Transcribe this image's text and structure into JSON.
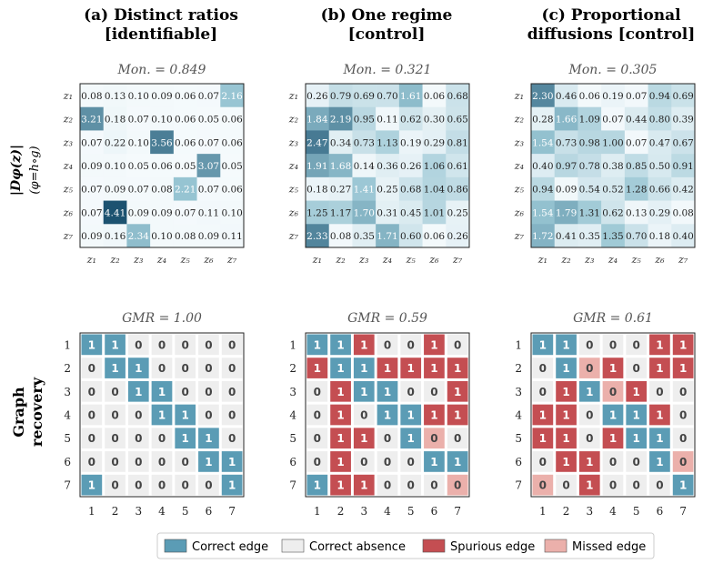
{
  "panels": [
    {
      "title_line1": "(a) Distinct ratios",
      "title_line2": "[identifiable]"
    },
    {
      "title_line1": "(b) One regime",
      "title_line2": "[control]"
    },
    {
      "title_line1": "(c) Proportional",
      "title_line2": "diffusions [control]"
    }
  ],
  "row_labels": {
    "top_line1": "|Dφ(z)|",
    "top_line2": "(φ=h∘g)",
    "bottom_line1": "Graph",
    "bottom_line2": "recovery"
  },
  "legend": [
    {
      "key": "correct_edge",
      "label": "Correct edge",
      "color": "#5b9cb5"
    },
    {
      "key": "correct_absence",
      "label": "Correct absence",
      "color": "#eeeeee"
    },
    {
      "key": "spurious_edge",
      "label": "Spurious edge",
      "color": "#c44e52"
    },
    {
      "key": "missed_edge",
      "label": "Missed edge",
      "color": "#ebb0ab"
    }
  ],
  "chart_data": [
    {
      "type": "heatmap",
      "panel": "(a) Distinct ratios [identifiable]",
      "subtitle": "Mon. = 0.849",
      "row_labels": [
        "z1",
        "z2",
        "z3",
        "z4",
        "z5",
        "z6",
        "z7"
      ],
      "col_labels": [
        "z1",
        "z2",
        "z3",
        "z4",
        "z5",
        "z6",
        "z7"
      ],
      "values": [
        [
          0.08,
          0.13,
          0.1,
          0.09,
          0.06,
          0.07,
          2.16
        ],
        [
          3.21,
          0.18,
          0.07,
          0.1,
          0.06,
          0.05,
          0.06
        ],
        [
          0.07,
          0.22,
          0.1,
          3.56,
          0.06,
          0.07,
          0.06
        ],
        [
          0.09,
          0.1,
          0.05,
          0.06,
          0.05,
          3.07,
          0.05
        ],
        [
          0.07,
          0.09,
          0.07,
          0.08,
          2.21,
          0.07,
          0.06
        ],
        [
          0.07,
          4.41,
          0.09,
          0.09,
          0.07,
          0.11,
          0.1
        ],
        [
          0.09,
          0.16,
          2.34,
          0.1,
          0.08,
          0.09,
          0.11
        ]
      ]
    },
    {
      "type": "heatmap",
      "panel": "(b) One regime [control]",
      "subtitle": "Mon. = 0.321",
      "row_labels": [
        "z1",
        "z2",
        "z3",
        "z4",
        "z5",
        "z6",
        "z7"
      ],
      "col_labels": [
        "z1",
        "z2",
        "z3",
        "z4",
        "z5",
        "z6",
        "z7"
      ],
      "values": [
        [
          0.26,
          0.79,
          0.69,
          0.7,
          1.61,
          0.06,
          0.68
        ],
        [
          1.84,
          2.19,
          0.95,
          0.11,
          0.62,
          0.3,
          0.65
        ],
        [
          2.47,
          0.34,
          0.73,
          1.13,
          0.19,
          0.29,
          0.81
        ],
        [
          1.91,
          1.68,
          0.14,
          0.36,
          0.26,
          1.06,
          0.61
        ],
        [
          0.18,
          0.27,
          1.41,
          0.25,
          0.68,
          1.04,
          0.86
        ],
        [
          1.25,
          1.17,
          1.7,
          0.31,
          0.45,
          1.01,
          0.25
        ],
        [
          2.33,
          0.08,
          0.35,
          1.71,
          0.6,
          0.06,
          0.26
        ]
      ]
    },
    {
      "type": "heatmap",
      "panel": "(c) Proportional diffusions [control]",
      "subtitle": "Mon. = 0.305",
      "row_labels": [
        "z1",
        "z2",
        "z3",
        "z4",
        "z5",
        "z6",
        "z7"
      ],
      "col_labels": [
        "z1",
        "z2",
        "z3",
        "z4",
        "z5",
        "z6",
        "z7"
      ],
      "values": [
        [
          2.3,
          0.46,
          0.06,
          0.19,
          0.07,
          0.94,
          0.69
        ],
        [
          0.28,
          1.66,
          1.09,
          0.07,
          0.44,
          0.8,
          0.39
        ],
        [
          1.54,
          0.73,
          0.98,
          1.0,
          0.07,
          0.47,
          0.67
        ],
        [
          0.4,
          0.97,
          0.78,
          0.38,
          0.85,
          0.5,
          0.91
        ],
        [
          0.94,
          0.09,
          0.54,
          0.52,
          1.28,
          0.66,
          0.42
        ],
        [
          1.54,
          1.79,
          1.31,
          0.62,
          0.13,
          0.29,
          0.08
        ],
        [
          1.72,
          0.41,
          0.35,
          1.35,
          0.7,
          0.18,
          0.4
        ]
      ]
    },
    {
      "type": "table",
      "panel": "(a) Distinct ratios [identifiable]",
      "subtitle": "GMR = 1.00",
      "row_labels": [
        "1",
        "2",
        "3",
        "4",
        "5",
        "6",
        "7"
      ],
      "col_labels": [
        "1",
        "2",
        "3",
        "4",
        "5",
        "6",
        "7"
      ],
      "values": [
        [
          1,
          1,
          0,
          0,
          0,
          0,
          0
        ],
        [
          0,
          1,
          1,
          0,
          0,
          0,
          0
        ],
        [
          0,
          0,
          1,
          1,
          0,
          0,
          0
        ],
        [
          0,
          0,
          0,
          1,
          1,
          0,
          0
        ],
        [
          0,
          0,
          0,
          0,
          1,
          1,
          0
        ],
        [
          0,
          0,
          0,
          0,
          0,
          1,
          1
        ],
        [
          1,
          0,
          0,
          0,
          0,
          0,
          1
        ]
      ],
      "status": [
        [
          "C",
          "C",
          "A",
          "A",
          "A",
          "A",
          "A"
        ],
        [
          "A",
          "C",
          "C",
          "A",
          "A",
          "A",
          "A"
        ],
        [
          "A",
          "A",
          "C",
          "C",
          "A",
          "A",
          "A"
        ],
        [
          "A",
          "A",
          "A",
          "C",
          "C",
          "A",
          "A"
        ],
        [
          "A",
          "A",
          "A",
          "A",
          "C",
          "C",
          "A"
        ],
        [
          "A",
          "A",
          "A",
          "A",
          "A",
          "C",
          "C"
        ],
        [
          "C",
          "A",
          "A",
          "A",
          "A",
          "A",
          "C"
        ]
      ]
    },
    {
      "type": "table",
      "panel": "(b) One regime [control]",
      "subtitle": "GMR = 0.59",
      "row_labels": [
        "1",
        "2",
        "3",
        "4",
        "5",
        "6",
        "7"
      ],
      "col_labels": [
        "1",
        "2",
        "3",
        "4",
        "5",
        "6",
        "7"
      ],
      "values": [
        [
          1,
          1,
          1,
          0,
          0,
          1,
          0
        ],
        [
          1,
          1,
          1,
          1,
          1,
          1,
          1
        ],
        [
          0,
          1,
          1,
          1,
          0,
          0,
          1
        ],
        [
          0,
          1,
          0,
          1,
          1,
          1,
          1
        ],
        [
          0,
          1,
          1,
          0,
          1,
          0,
          0
        ],
        [
          0,
          1,
          0,
          0,
          0,
          1,
          1
        ],
        [
          1,
          1,
          1,
          0,
          0,
          0,
          0
        ]
      ],
      "status": [
        [
          "C",
          "C",
          "S",
          "A",
          "A",
          "S",
          "A"
        ],
        [
          "S",
          "C",
          "C",
          "S",
          "S",
          "S",
          "S"
        ],
        [
          "A",
          "S",
          "C",
          "C",
          "A",
          "A",
          "S"
        ],
        [
          "A",
          "S",
          "A",
          "C",
          "C",
          "S",
          "S"
        ],
        [
          "A",
          "S",
          "S",
          "A",
          "C",
          "M",
          "A"
        ],
        [
          "A",
          "S",
          "A",
          "A",
          "A",
          "C",
          "C"
        ],
        [
          "C",
          "S",
          "S",
          "A",
          "A",
          "A",
          "M"
        ]
      ]
    },
    {
      "type": "table",
      "panel": "(c) Proportional diffusions [control]",
      "subtitle": "GMR = 0.61",
      "row_labels": [
        "1",
        "2",
        "3",
        "4",
        "5",
        "6",
        "7"
      ],
      "col_labels": [
        "1",
        "2",
        "3",
        "4",
        "5",
        "6",
        "7"
      ],
      "values": [
        [
          1,
          1,
          0,
          0,
          0,
          1,
          1
        ],
        [
          0,
          1,
          0,
          1,
          0,
          1,
          1
        ],
        [
          0,
          1,
          1,
          0,
          1,
          0,
          0
        ],
        [
          1,
          1,
          0,
          1,
          1,
          1,
          0
        ],
        [
          1,
          1,
          0,
          1,
          1,
          1,
          0
        ],
        [
          0,
          1,
          1,
          0,
          0,
          1,
          0
        ],
        [
          0,
          0,
          1,
          0,
          0,
          0,
          1
        ]
      ],
      "status": [
        [
          "C",
          "C",
          "A",
          "A",
          "A",
          "S",
          "S"
        ],
        [
          "A",
          "C",
          "M",
          "S",
          "A",
          "S",
          "S"
        ],
        [
          "A",
          "S",
          "C",
          "M",
          "S",
          "A",
          "A"
        ],
        [
          "S",
          "S",
          "A",
          "C",
          "C",
          "S",
          "A"
        ],
        [
          "S",
          "S",
          "A",
          "S",
          "C",
          "C",
          "A"
        ],
        [
          "A",
          "S",
          "S",
          "A",
          "A",
          "C",
          "M"
        ],
        [
          "M",
          "A",
          "S",
          "A",
          "A",
          "A",
          "C"
        ]
      ]
    }
  ]
}
